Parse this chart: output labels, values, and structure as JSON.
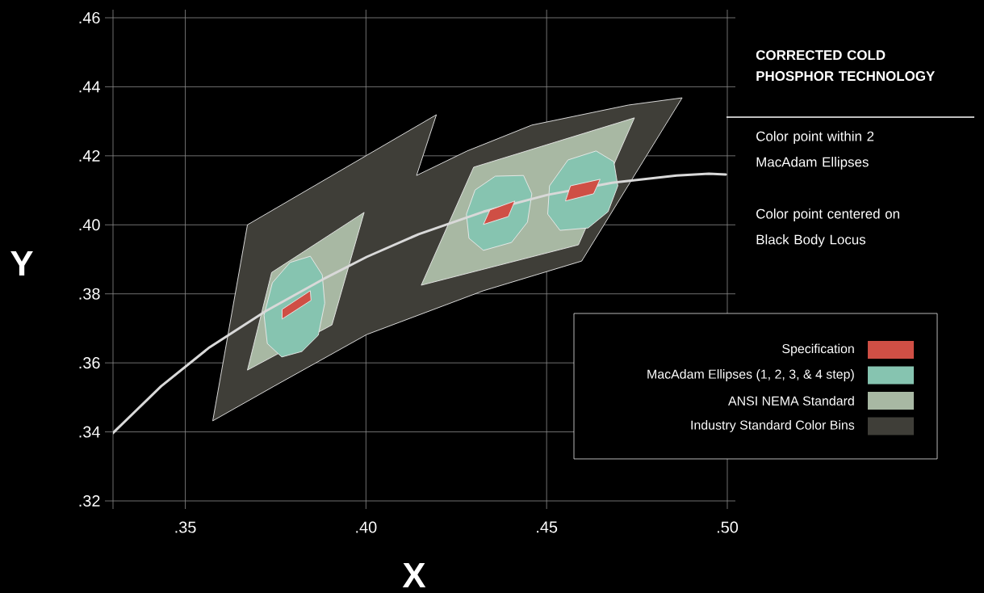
{
  "chart_data": {
    "type": "line",
    "xlabel": "X",
    "ylabel": "Y",
    "xlim": [
      0.33,
      0.5
    ],
    "ylim": [
      0.32,
      0.46
    ],
    "xticks": [
      {
        "value": 0.33,
        "label": null
      },
      {
        "value": 0.35,
        "label": ".35"
      },
      {
        "value": 0.4,
        "label": ".40"
      },
      {
        "value": 0.45,
        "label": ".45"
      },
      {
        "value": 0.5,
        "label": ".50"
      }
    ],
    "yticks": [
      {
        "value": 0.32,
        "label": ".32"
      },
      {
        "value": 0.34,
        "label": ".34"
      },
      {
        "value": 0.36,
        "label": ".36"
      },
      {
        "value": 0.38,
        "label": ".38"
      },
      {
        "value": 0.4,
        "label": ".40"
      },
      {
        "value": 0.42,
        "label": ".42"
      },
      {
        "value": 0.44,
        "label": ".44"
      },
      {
        "value": 0.46,
        "label": ".46"
      }
    ],
    "grid": true,
    "legend": "bottom right",
    "series": [
      {
        "name": "Industry Standard Color Bins",
        "type": "area",
        "color": "#3f3e38",
        "x": [
          0.3576,
          0.3672,
          0.4195,
          0.414,
          0.428,
          0.4459,
          0.4726,
          0.4875,
          0.4597,
          0.4325,
          0.4002,
          0.3745
        ],
        "values": [
          0.3432,
          0.4,
          0.4319,
          0.4143,
          0.4214,
          0.4289,
          0.4347,
          0.4368,
          0.3895,
          0.3809,
          0.3682,
          0.3532
        ]
      },
      {
        "name": "ANSI NEMA Standard",
        "type": "area",
        "color": "#a8b8a3",
        "x": [
          0.3995,
          0.3906,
          0.3672,
          0.3739,
          null,
          0.4743,
          0.4588,
          0.4153,
          0.4298
        ],
        "values": [
          0.4036,
          0.371,
          0.3579,
          0.3862,
          null,
          0.431,
          0.3942,
          0.3825,
          0.4167
        ]
      },
      {
        "name": "MacAdam Ellipses (1, 2, 3, & 4 step)",
        "type": "area",
        "color": "#86c4b0",
        "x": [
          0.3846,
          0.3879,
          0.3886,
          0.3868,
          0.3823,
          0.3767,
          0.3727,
          0.3718,
          0.3741,
          0.379,
          null,
          0.4436,
          0.4459,
          0.4447,
          0.4403,
          0.4325,
          0.4285,
          0.4278,
          0.4302,
          0.4358,
          null,
          0.4637,
          0.4686,
          0.4697,
          0.467,
          0.4615,
          0.4537,
          0.4503,
          0.4508,
          0.4559
        ],
        "values": [
          0.3909,
          0.3855,
          0.3773,
          0.368,
          0.3633,
          0.3617,
          0.3656,
          0.3738,
          0.3832,
          0.3891,
          null,
          0.4143,
          0.409,
          0.4008,
          0.3949,
          0.3926,
          0.3961,
          0.4031,
          0.4101,
          0.4141,
          null,
          0.4214,
          0.4183,
          0.4113,
          0.4038,
          0.3991,
          0.3984,
          0.4031,
          0.4113,
          0.4188
        ]
      },
      {
        "type": "line",
        "color": "#d9d9d9",
        "x": [
          0.33,
          0.3433,
          0.3567,
          0.3723,
          0.3879,
          0.4002,
          0.4146,
          0.4325,
          0.4503,
          0.4681,
          0.486,
          0.4949,
          0.4996
        ],
        "values": [
          0.3397,
          0.3532,
          0.3645,
          0.375,
          0.3841,
          0.3907,
          0.3973,
          0.4038,
          0.4087,
          0.4122,
          0.4143,
          0.4148,
          0.4146
        ]
      },
      {
        "name": "Specification",
        "type": "area",
        "color": "#cf4f45",
        "x": [
          0.3768,
          0.3846,
          0.3848,
          0.3768,
          null,
          0.4325,
          0.4343,
          0.4412,
          0.4394,
          null,
          0.4552,
          0.4566,
          0.4648,
          0.463
        ],
        "values": [
          0.3755,
          0.3809,
          0.3781,
          0.3727,
          null,
          0.4001,
          0.4043,
          0.4069,
          0.4024,
          null,
          0.4069,
          0.4113,
          0.4132,
          0.409
        ]
      }
    ],
    "annotations": [
      "CORRECTED COLD PHOSPHOR TECHNOLOGY",
      "Color point within 2 MacAdam Ellipses",
      "Color point centered on Black Body Locus"
    ]
  }
}
